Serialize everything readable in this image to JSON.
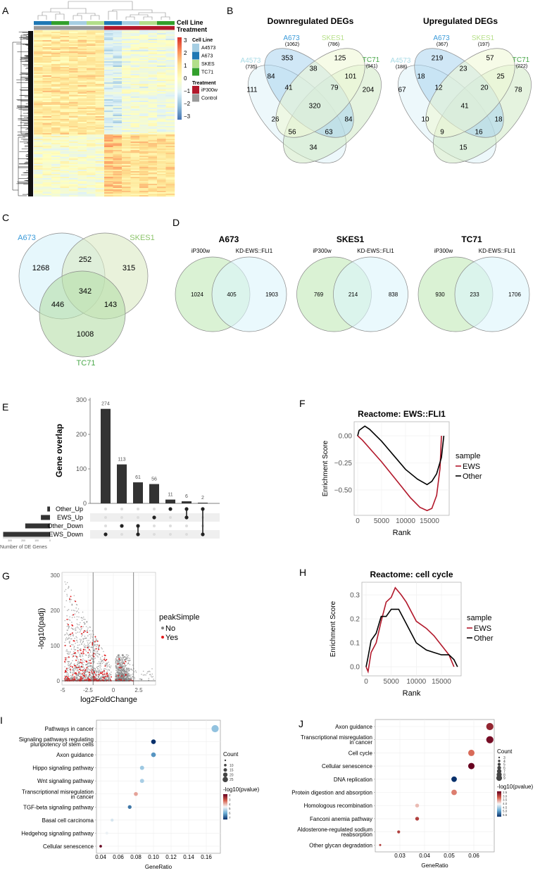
{
  "panel_labels": [
    "A",
    "B",
    "C",
    "D",
    "E",
    "F",
    "G",
    "H",
    "I",
    "J"
  ],
  "chart_data": [
    {
      "type": "heatmap",
      "annotation_titles": [
        "Cell Line",
        "Treatment"
      ],
      "column_groups": [
        {
          "cell_line": "A673",
          "treatment": "Control"
        },
        {
          "cell_line": "TC71",
          "treatment": "Control"
        },
        {
          "cell_line": "A4573",
          "treatment": "Control"
        },
        {
          "cell_line": "SKES",
          "treatment": "Control"
        },
        {
          "cell_line": "A673",
          "treatment": "iP300w"
        },
        {
          "cell_line": "A4573",
          "treatment": "iP300w"
        },
        {
          "cell_line": "SKES",
          "treatment": "iP300w"
        },
        {
          "cell_line": "TC71",
          "treatment": "iP300w"
        }
      ],
      "scale": {
        "min": -3,
        "max": 3,
        "ticks": [
          "3",
          "2",
          "1",
          "0",
          "−1",
          "−2",
          "−3"
        ]
      },
      "legend": {
        "cell_line_title": "Cell Line",
        "cell_lines": [
          {
            "name": "A4573",
            "color": "#a6cee3"
          },
          {
            "name": "A673",
            "color": "#1f78b4"
          },
          {
            "name": "SKES",
            "color": "#b2df8a"
          },
          {
            "name": "TC71",
            "color": "#33a02c"
          }
        ],
        "treatment_title": "Treatment",
        "treatments": [
          {
            "name": "iP300w",
            "color": "#b2182b"
          },
          {
            "name": "Control",
            "color": "#999999"
          }
        ]
      }
    },
    {
      "type": "venn",
      "title": "Downregulated DEGs",
      "sets": [
        {
          "name": "A4573",
          "total": "(735)",
          "color": "#a8dbe6"
        },
        {
          "name": "A673",
          "total": "(1062)",
          "color": "#3a9ad9"
        },
        {
          "name": "SKES1",
          "total": "(786)",
          "color": "#b8e08a"
        },
        {
          "name": "TC71",
          "total": "(941)",
          "color": "#4aa84a"
        }
      ],
      "regions": {
        "A673": "353",
        "SKES1": "125",
        "A4573": "111",
        "TC71": "204",
        "A4573&A673": "84",
        "A673&SKES1": "38",
        "SKES1&TC71": "101",
        "A4573&A673&SKES1": "41",
        "A673&SKES1&TC71": "79",
        "all": "320",
        "A4573&SKES1": "26",
        "A673&TC71": "84",
        "A4573&SKES1&TC71": "56",
        "A4573&A673&TC71": "63",
        "A4573&TC71": "34"
      }
    },
    {
      "type": "venn",
      "title": "Upregulated DEGs",
      "sets": [
        {
          "name": "A4573",
          "total": "(188)",
          "color": "#a8dbe6"
        },
        {
          "name": "A673",
          "total": "(367)",
          "color": "#3a9ad9"
        },
        {
          "name": "SKES1",
          "total": "(197)",
          "color": "#b8e08a"
        },
        {
          "name": "TC71",
          "total": "(222)",
          "color": "#4aa84a"
        }
      ],
      "regions": {
        "A673": "219",
        "SKES1": "57",
        "A4573": "67",
        "TC71": "78",
        "A4573&A673": "18",
        "A673&SKES1": "23",
        "SKES1&TC71": "25",
        "A4573&A673&SKES1": "12",
        "A673&SKES1&TC71": "20",
        "all": "41",
        "A4573&SKES1": "10",
        "A673&TC71": "18",
        "A4573&SKES1&TC71": "9",
        "A4573&A673&TC71": "16",
        "A4573&TC71": "15"
      }
    },
    {
      "type": "venn",
      "sets": [
        {
          "name": "A673",
          "color": "#3a9ad9"
        },
        {
          "name": "SKES1",
          "color": "#8cc46a"
        },
        {
          "name": "TC71",
          "color": "#4aa84a"
        }
      ],
      "regions": {
        "A673": "1268",
        "A673&SKES1": "252",
        "SKES1": "315",
        "all": "342",
        "A673&TC71": "446",
        "SKES1&TC71": "143",
        "TC71": "1008"
      }
    },
    {
      "type": "venn",
      "title": "A673",
      "sets": [
        "iP300w",
        "KD-EWS::FLI1"
      ],
      "regions": {
        "left": "1024",
        "both": "405",
        "right": "1903"
      }
    },
    {
      "type": "venn",
      "title": "SKES1",
      "sets": [
        "iP300w",
        "KD-EWS::FLI1"
      ],
      "regions": {
        "left": "769",
        "both": "214",
        "right": "838"
      }
    },
    {
      "type": "venn",
      "title": "TC71",
      "sets": [
        "iP300w",
        "KD-EWS::FLI1"
      ],
      "regions": {
        "left": "930",
        "both": "233",
        "right": "1706"
      }
    },
    {
      "type": "bar",
      "ylabel": "Gene overlap",
      "ylim": [
        0,
        300
      ],
      "yticks": [
        "0",
        "100",
        "200",
        "300"
      ],
      "intersections": [
        {
          "value": 274,
          "label": "274",
          "sets": [
            "EWS_Down"
          ]
        },
        {
          "value": 113,
          "label": "113",
          "sets": [
            "Other_Down"
          ]
        },
        {
          "value": 61,
          "label": "61",
          "sets": [
            "Other_Down",
            "EWS_Down"
          ]
        },
        {
          "value": 56,
          "label": "56",
          "sets": [
            "EWS_Up"
          ]
        },
        {
          "value": 11,
          "label": "11",
          "sets": [
            "Other_Up"
          ]
        },
        {
          "value": 6,
          "label": "6",
          "sets": [
            "Other_Up",
            "EWS_Up"
          ]
        },
        {
          "value": 2,
          "label": "2",
          "sets": [
            "Other_Up",
            "EWS_Down"
          ]
        }
      ],
      "sets": [
        {
          "name": "Other_Up",
          "size": 20
        },
        {
          "name": "EWS_Up",
          "size": 68
        },
        {
          "name": "Other_Down",
          "size": 185
        },
        {
          "name": "EWS_Down",
          "size": 350
        }
      ],
      "set_axis_label": "Number of DE Genes",
      "set_ticks": [
        "300",
        "200",
        "100",
        "0"
      ]
    },
    {
      "type": "line",
      "title": "Reactome: EWS::FLI1",
      "xlabel": "Rank",
      "ylabel": "Enrichment Score",
      "xticks": [
        0,
        5000,
        10000,
        15000
      ],
      "xtick_labels": [
        "0",
        "5000",
        "10000",
        "15000"
      ],
      "yticks": [
        0,
        -0.25,
        -0.5
      ],
      "ytick_labels": [
        "0.00",
        "−0.25",
        "−0.50"
      ],
      "xlim": [
        -735,
        19118
      ],
      "ylim": [
        -0.734,
        0.13
      ],
      "legend_title": "sample",
      "series": [
        {
          "name": "EWS",
          "color": "#b2182b",
          "points": [
            [
              0,
              0
            ],
            [
              1000,
              -0.04
            ],
            [
              3000,
              -0.14
            ],
            [
              5000,
              -0.24
            ],
            [
              7000,
              -0.35
            ],
            [
              9000,
              -0.46
            ],
            [
              11000,
              -0.57
            ],
            [
              13000,
              -0.66
            ],
            [
              14500,
              -0.69
            ],
            [
              15500,
              -0.67
            ],
            [
              16500,
              -0.55
            ],
            [
              17200,
              -0.3
            ],
            [
              17500,
              0
            ]
          ]
        },
        {
          "name": "Other",
          "color": "#000000",
          "points": [
            [
              0,
              0
            ],
            [
              300,
              0.05
            ],
            [
              1500,
              0.09
            ],
            [
              2500,
              0.06
            ],
            [
              5000,
              -0.05
            ],
            [
              7500,
              -0.18
            ],
            [
              10000,
              -0.31
            ],
            [
              12500,
              -0.4
            ],
            [
              14500,
              -0.45
            ],
            [
              15500,
              -0.42
            ],
            [
              16500,
              -0.35
            ],
            [
              17500,
              -0.2
            ],
            [
              18000,
              0
            ]
          ]
        }
      ]
    },
    {
      "type": "scatter",
      "xlabel": "log2FoldChange",
      "ylabel": "-log10(padj)",
      "xticks": [
        -5,
        -2.5,
        0,
        2.5
      ],
      "xtick_labels": [
        "-5",
        "-2.5",
        "0",
        "2.5"
      ],
      "yticks": [
        0,
        100,
        200,
        300
      ],
      "ytick_labels": [
        "0",
        "100",
        "200",
        "300"
      ],
      "xlim": [
        -5.07,
        4.17
      ],
      "ylim": [
        -12,
        308
      ],
      "thresholds": [
        -2,
        2
      ],
      "legend_title": "peakSimple",
      "legend": [
        {
          "name": "No",
          "color": "#7f7f7f"
        },
        {
          "name": "Yes",
          "color": "#e41a1c"
        }
      ]
    },
    {
      "type": "line",
      "title": "Reactome: cell cycle",
      "xlabel": "Rank",
      "ylabel": "Enrichment Score",
      "xticks": [
        0,
        5000,
        10000,
        15000
      ],
      "xtick_labels": [
        "0",
        "5000",
        "10000",
        "15000"
      ],
      "yticks": [
        0,
        0.1,
        0.2,
        0.3
      ],
      "ytick_labels": [
        "0.0",
        "0.1",
        "0.2",
        "0.3"
      ],
      "xlim": [
        -840,
        18930
      ],
      "ylim": [
        -0.038,
        0.353
      ],
      "legend_title": "sample",
      "series": [
        {
          "name": "EWS",
          "color": "#b2182b",
          "points": [
            [
              0,
              0
            ],
            [
              400,
              -0.02
            ],
            [
              1000,
              0.06
            ],
            [
              2000,
              0.1
            ],
            [
              3000,
              0.19
            ],
            [
              4000,
              0.27
            ],
            [
              5000,
              0.29
            ],
            [
              5800,
              0.33
            ],
            [
              7000,
              0.3
            ],
            [
              8000,
              0.27
            ],
            [
              10000,
              0.19
            ],
            [
              12000,
              0.16
            ],
            [
              13500,
              0.13
            ],
            [
              15000,
              0.09
            ],
            [
              16500,
              0.05
            ],
            [
              17500,
              0
            ]
          ]
        },
        {
          "name": "Other",
          "color": "#000000",
          "points": [
            [
              0,
              0
            ],
            [
              300,
              0.03
            ],
            [
              1000,
              0.11
            ],
            [
              2000,
              0.14
            ],
            [
              3000,
              0.21
            ],
            [
              4000,
              0.21
            ],
            [
              5000,
              0.24
            ],
            [
              6500,
              0.24
            ],
            [
              8000,
              0.18
            ],
            [
              10000,
              0.1
            ],
            [
              12000,
              0.07
            ],
            [
              13500,
              0.06
            ],
            [
              15000,
              0.05
            ],
            [
              16500,
              0.05
            ],
            [
              17500,
              0.03
            ],
            [
              18200,
              0
            ]
          ]
        }
      ]
    },
    {
      "type": "scatter",
      "xlabel": "GeneRatio",
      "xticks": [
        0.04,
        0.06,
        0.08,
        0.1,
        0.12,
        0.14,
        0.16
      ],
      "xtick_labels": [
        "0.04",
        "0.06",
        "0.08",
        "0.10",
        "0.12",
        "0.14",
        "0.16"
      ],
      "size_legend_title": "Count",
      "size_legend": [
        {
          "value": 5,
          "label": ""
        },
        {
          "value": 10,
          "label": "10"
        },
        {
          "value": 15,
          "label": "15"
        },
        {
          "value": 20,
          "label": "20"
        },
        {
          "value": 25,
          "label": "25"
        }
      ],
      "size_range": [
        5,
        27
      ],
      "color_legend_title": "-log10(pvalue)",
      "color_range": [
        2,
        7
      ],
      "color_ticks": [
        "2",
        "3",
        "4",
        "5",
        "6",
        "7"
      ],
      "terms": [
        {
          "lines": [
            "Pathways in cancer"
          ],
          "gene_ratio": 0.17,
          "count": 27,
          "neglog10p": 5.4
        },
        {
          "lines": [
            "Signaling pathways regulating",
            "pluripotency of stem cells"
          ],
          "gene_ratio": 0.1,
          "count": 16,
          "neglog10p": 7.0
        },
        {
          "lines": [
            "Axon guidance"
          ],
          "gene_ratio": 0.1,
          "count": 16,
          "neglog10p": 6.0
        },
        {
          "lines": [
            "Hippo signaling pathway"
          ],
          "gene_ratio": 0.087,
          "count": 14,
          "neglog10p": 5.3
        },
        {
          "lines": [
            "Wnt signaling pathway"
          ],
          "gene_ratio": 0.087,
          "count": 14,
          "neglog10p": 5.2
        },
        {
          "lines": [
            "Transcriptional misregulation",
            "in cancer"
          ],
          "gene_ratio": 0.08,
          "count": 13,
          "neglog10p": 3.8
        },
        {
          "lines": [
            "TGF-beta signaling pathway"
          ],
          "gene_ratio": 0.073,
          "count": 12,
          "neglog10p": 6.3
        },
        {
          "lines": [
            "Basal cell carcinoma"
          ],
          "gene_ratio": 0.053,
          "count": 9,
          "neglog10p": 4.8
        },
        {
          "lines": [
            "Hedgehog signaling pathway"
          ],
          "gene_ratio": 0.047,
          "count": 8,
          "neglog10p": 4.6
        },
        {
          "lines": [
            "Cellular senescence"
          ],
          "gene_ratio": 0.04,
          "count": 7,
          "neglog10p": 2.0
        }
      ]
    },
    {
      "type": "scatter",
      "xlabel": "GeneRatio",
      "xticks": [
        0.03,
        0.04,
        0.05,
        0.06
      ],
      "xtick_labels": [
        "0.03",
        "0.04",
        "0.05",
        "0.06"
      ],
      "size_legend_title": "Count",
      "size_legend": [
        {
          "value": 3,
          "label": "3"
        },
        {
          "value": 4,
          "label": "4"
        },
        {
          "value": 5,
          "label": "5"
        },
        {
          "value": 6,
          "label": "6"
        },
        {
          "value": 7,
          "label": "7"
        },
        {
          "value": 8,
          "label": "8"
        },
        {
          "value": 9,
          "label": "9"
        }
      ],
      "size_range": [
        3,
        9
      ],
      "color_legend_title": "-log10(pvalue)",
      "color_range": [
        2.5,
        5.5
      ],
      "color_ticks": [
        "2.5",
        "3.0",
        "3.5",
        "4.0",
        "4.5",
        "5.0",
        "5.5"
      ],
      "terms": [
        {
          "lines": [
            "Axon guidance"
          ],
          "gene_ratio": 0.0665,
          "count": 9,
          "neglog10p": 2.8
        },
        {
          "lines": [
            "Transcriptional misregulation",
            "in cancer"
          ],
          "gene_ratio": 0.0665,
          "count": 9,
          "neglog10p": 2.6
        },
        {
          "lines": [
            "Cell cycle"
          ],
          "gene_ratio": 0.059,
          "count": 8,
          "neglog10p": 3.3
        },
        {
          "lines": [
            "Cellular senescence"
          ],
          "gene_ratio": 0.059,
          "count": 8,
          "neglog10p": 2.5
        },
        {
          "lines": [
            "DNA replication"
          ],
          "gene_ratio": 0.052,
          "count": 7,
          "neglog10p": 5.5
        },
        {
          "lines": [
            "Protein digestion and absorption"
          ],
          "gene_ratio": 0.052,
          "count": 7,
          "neglog10p": 3.4
        },
        {
          "lines": [
            "Homologous recombination"
          ],
          "gene_ratio": 0.037,
          "count": 5,
          "neglog10p": 3.7
        },
        {
          "lines": [
            "Fanconi anemia pathway"
          ],
          "gene_ratio": 0.037,
          "count": 5,
          "neglog10p": 3.0
        },
        {
          "lines": [
            "Aldosterone-regulated sodium",
            "reabsorption"
          ],
          "gene_ratio": 0.0295,
          "count": 4,
          "neglog10p": 3.0
        },
        {
          "lines": [
            "Other glycan degradation"
          ],
          "gene_ratio": 0.022,
          "count": 3,
          "neglog10p": 3.0
        }
      ]
    }
  ]
}
